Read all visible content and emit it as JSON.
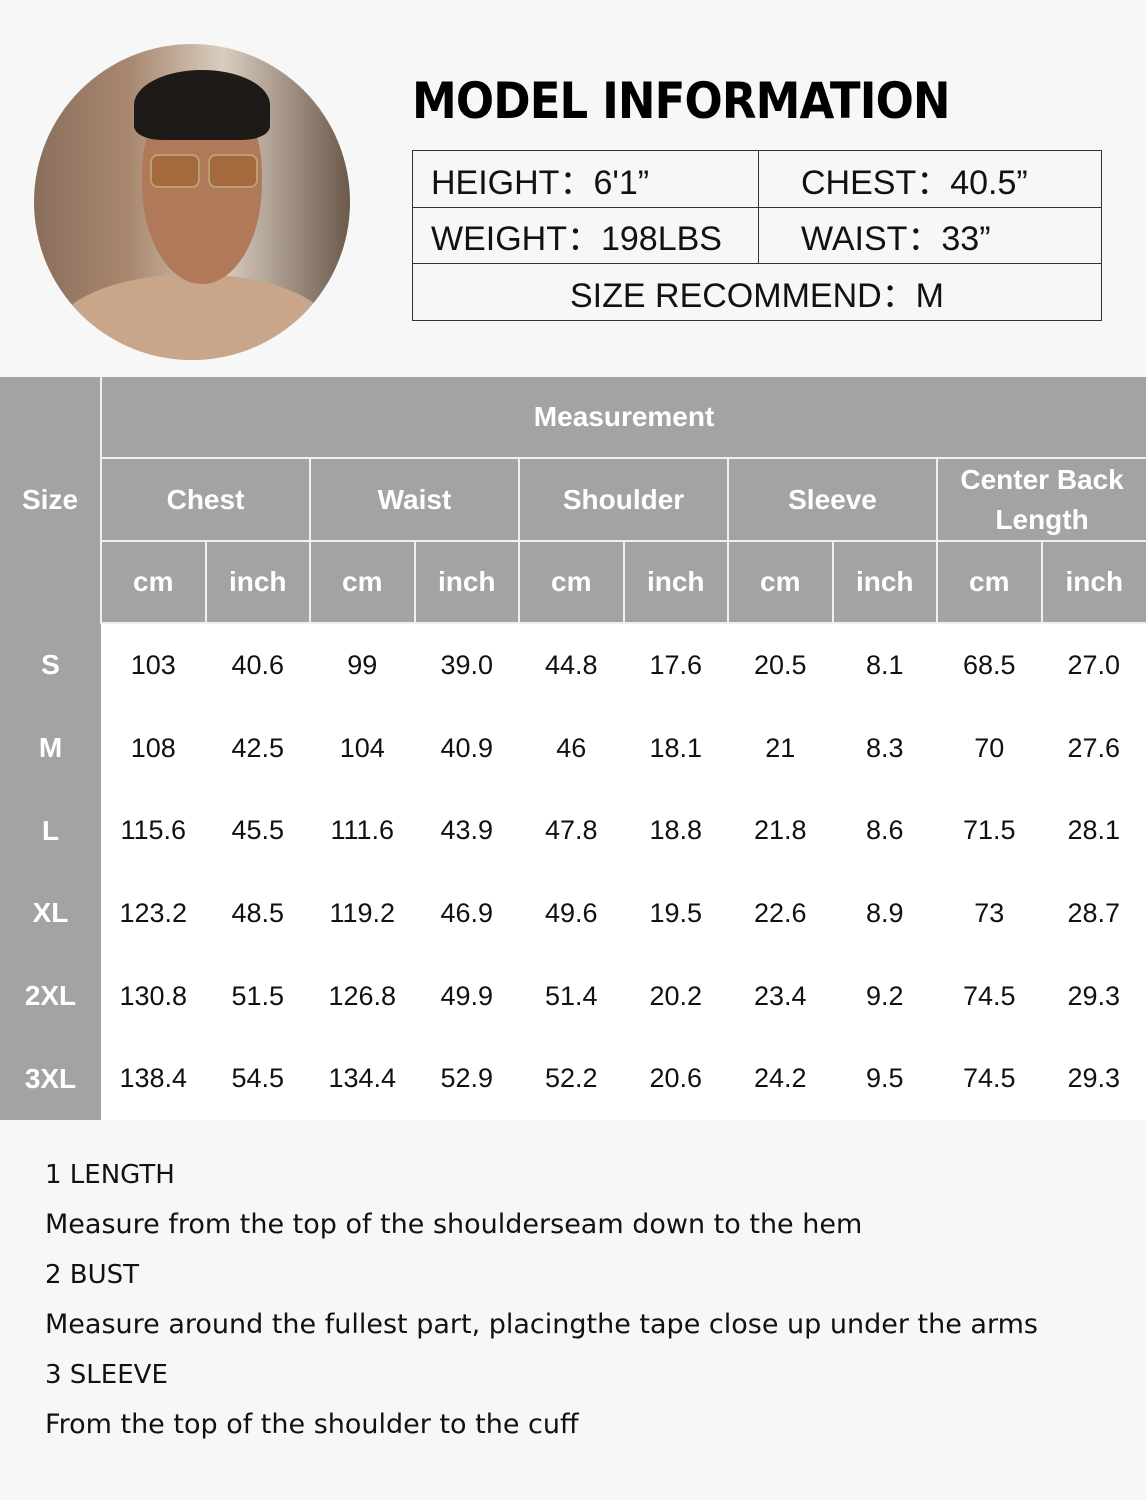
{
  "model": {
    "title": "MODEL INFORMATION",
    "height": "HEIGHT：6'1”",
    "chest": "CHEST：40.5”",
    "weight": "WEIGHT：198LBS",
    "waist": "WAIST：33”",
    "recommend": "SIZE RECOMMEND：M"
  },
  "table": {
    "size_header": "Size",
    "measurement_header": "Measurement",
    "categories": [
      "Chest",
      "Waist",
      "Shoulder",
      "Sleeve",
      "Center Back Length"
    ],
    "units": [
      "cm",
      "inch"
    ],
    "rows": [
      {
        "size": "S",
        "values": [
          "103",
          "40.6",
          "99",
          "39.0",
          "44.8",
          "17.6",
          "20.5",
          "8.1",
          "68.5",
          "27.0"
        ]
      },
      {
        "size": "M",
        "values": [
          "108",
          "42.5",
          "104",
          "40.9",
          "46",
          "18.1",
          "21",
          "8.3",
          "70",
          "27.6"
        ]
      },
      {
        "size": "L",
        "values": [
          "115.6",
          "45.5",
          "111.6",
          "43.9",
          "47.8",
          "18.8",
          "21.8",
          "8.6",
          "71.5",
          "28.1"
        ]
      },
      {
        "size": "XL",
        "values": [
          "123.2",
          "48.5",
          "119.2",
          "46.9",
          "49.6",
          "19.5",
          "22.6",
          "8.9",
          "73",
          "28.7"
        ]
      },
      {
        "size": "2XL",
        "values": [
          "130.8",
          "51.5",
          "126.8",
          "49.9",
          "51.4",
          "20.2",
          "23.4",
          "9.2",
          "74.5",
          "29.3"
        ]
      },
      {
        "size": "3XL",
        "values": [
          "138.4",
          "54.5",
          "134.4",
          "52.9",
          "52.2",
          "20.6",
          "24.2",
          "9.5",
          "74.5",
          "29.3"
        ]
      }
    ]
  },
  "notes": [
    {
      "heading": "1 LENGTH",
      "text": "Measure from the top of the shoulderseam down to the hem"
    },
    {
      "heading": "2 BUST",
      "text": "Measure around the fullest part, placingthe tape close up under the arms"
    },
    {
      "heading": "3 SLEEVE",
      "text": "From the top of the shoulder to the cuff"
    }
  ],
  "colors": {
    "header_gray": "#a3a3a3",
    "background": "#f7f7f7"
  }
}
